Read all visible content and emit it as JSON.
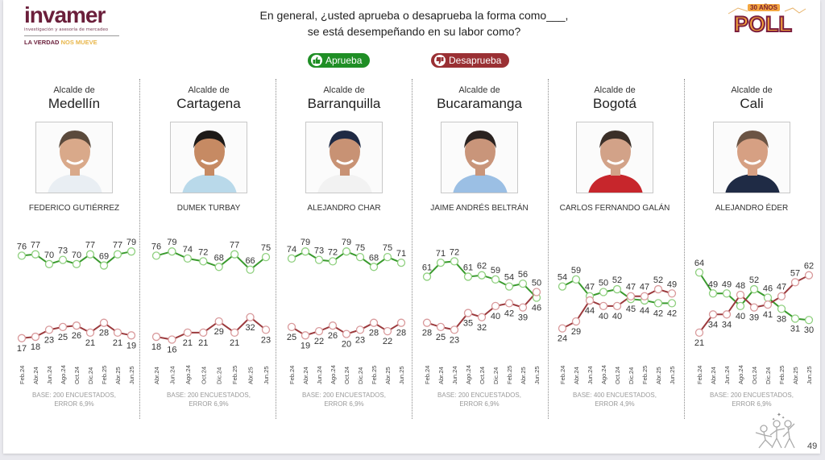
{
  "header": {
    "logo": {
      "name": "invamer",
      "subtitle": "investigación y asesoría de mercadeo",
      "tagline_a": "LA VERDAD",
      "tagline_b": "NOS MUEVE"
    },
    "question_line1": "En general, ¿usted aprueba o desaprueba la forma como___,",
    "question_line2": "se está desempeñando en su labor como?",
    "poll_badge": {
      "years": "30 AÑOS",
      "word": "POLL"
    }
  },
  "legend": {
    "approve": {
      "label": "Aprueba",
      "icon": "thumbs-up-icon",
      "color": "#1f8e25"
    },
    "disapprove": {
      "label": "Desaprueba",
      "icon": "thumbs-down-icon",
      "color": "#9a3034"
    }
  },
  "page_number": "49",
  "chart_data": [
    {
      "type": "line",
      "title_small": "Alcalde de",
      "title": "Medellín",
      "person": "FEDERICO GUTIÉRREZ",
      "x": [
        "Feb.24",
        "Abr.24",
        "Jun.24",
        "Ago.24",
        "Oct.24",
        "Dic.24",
        "Feb.25",
        "Abr.25",
        "Jun.25"
      ],
      "series": [
        {
          "name": "Aprueba",
          "color": "#3a9a2e",
          "values": [
            76,
            77,
            70,
            73,
            70,
            77,
            69,
            77,
            79
          ]
        },
        {
          "name": "Desaprueba",
          "color": "#9b3a3d",
          "values": [
            17,
            18,
            23,
            25,
            26,
            21,
            28,
            21,
            19
          ]
        }
      ],
      "base_line1": "BASE: 200 ENCUESTADOS,",
      "base_line2": "ERROR 6,9%",
      "ylim": [
        0,
        100
      ]
    },
    {
      "type": "line",
      "title_small": "Alcalde de",
      "title": "Cartagena",
      "person": "DUMEK TURBAY",
      "x": [
        "Abr.24",
        "Jun.24",
        "Ago.24",
        "Oct.24",
        "Dic.24",
        "Feb.25",
        "Abr.25",
        "Jun.25"
      ],
      "series": [
        {
          "name": "Aprueba",
          "color": "#3a9a2e",
          "values": [
            76,
            79,
            74,
            72,
            68,
            77,
            66,
            75
          ]
        },
        {
          "name": "Desaprueba",
          "color": "#9b3a3d",
          "values": [
            18,
            16,
            21,
            21,
            29,
            21,
            32,
            23
          ]
        }
      ],
      "base_line1": "BASE: 200 ENCUESTADOS,",
      "base_line2": "ERROR 6,9%",
      "ylim": [
        0,
        100
      ]
    },
    {
      "type": "line",
      "title_small": "Alcalde de",
      "title": "Barranquilla",
      "person": "ALEJANDRO CHAR",
      "x": [
        "Feb.24",
        "Abr.24",
        "Jun.24",
        "Ago.24",
        "Oct.24",
        "Dic.24",
        "Feb.25",
        "Abr.25",
        "Jun.25"
      ],
      "series": [
        {
          "name": "Aprueba",
          "color": "#3a9a2e",
          "values": [
            74,
            79,
            73,
            72,
            79,
            75,
            68,
            75,
            71
          ]
        },
        {
          "name": "Desaprueba",
          "color": "#9b3a3d",
          "values": [
            25,
            19,
            22,
            26,
            20,
            23,
            28,
            22,
            28
          ]
        }
      ],
      "base_line1": "BASE: 200 ENCUESTADOS,",
      "base_line2": "ERROR 6,9%",
      "ylim": [
        0,
        100
      ]
    },
    {
      "type": "line",
      "title_small": "Alcalde de",
      "title": "Bucaramanga",
      "person": "JAIME ANDRÉS BELTRÁN",
      "x": [
        "Feb.24",
        "Abr.24",
        "Jun.24",
        "Ago.24",
        "Oct.24",
        "Dic.24",
        "Feb.25",
        "Abr.25",
        "Jun.25"
      ],
      "series": [
        {
          "name": "Aprueba",
          "color": "#3a9a2e",
          "values": [
            61,
            71,
            72,
            61,
            62,
            59,
            54,
            56,
            46
          ]
        },
        {
          "name": "Desaprueba",
          "color": "#9b3a3d",
          "values": [
            28,
            25,
            23,
            35,
            32,
            40,
            42,
            39,
            50
          ]
        }
      ],
      "base_line1": "BASE: 200 ENCUESTADOS,",
      "base_line2": "ERROR 6,9%",
      "ylim": [
        0,
        100
      ]
    },
    {
      "type": "line",
      "title_small": "Alcalde de",
      "title": "Bogotá",
      "person": "CARLOS FERNANDO GALÁN",
      "x": [
        "Feb.24",
        "Abr.24",
        "Jun.24",
        "Ago.24",
        "Oct.24",
        "Dic.24",
        "Feb.25",
        "Abr.25",
        "Jun.25"
      ],
      "series": [
        {
          "name": "Aprueba",
          "color": "#3a9a2e",
          "values": [
            54,
            59,
            47,
            50,
            52,
            45,
            44,
            42,
            42
          ]
        },
        {
          "name": "Desaprueba",
          "color": "#9b3a3d",
          "values": [
            24,
            29,
            44,
            40,
            40,
            47,
            47,
            52,
            49
          ]
        }
      ],
      "base_line1": "BASE: 400 ENCUESTADOS,",
      "base_line2": "ERROR 4,9%",
      "ylim": [
        0,
        100
      ]
    },
    {
      "type": "line",
      "title_small": "Alcalde de",
      "title": "Cali",
      "person": "ALEJANDRO ÉDER",
      "x": [
        "Feb.24",
        "Abr.24",
        "Jun.24",
        "Ago.24",
        "Oct.24",
        "Dic.24",
        "Feb.25",
        "Abr.25",
        "Jun.25"
      ],
      "series": [
        {
          "name": "Aprueba",
          "color": "#3a9a2e",
          "values": [
            64,
            49,
            49,
            40,
            52,
            46,
            38,
            31,
            30
          ]
        },
        {
          "name": "Desaprueba",
          "color": "#9b3a3d",
          "values": [
            21,
            34,
            34,
            48,
            39,
            41,
            47,
            57,
            62
          ]
        }
      ],
      "base_line1": "BASE: 200 ENCUESTADOS,",
      "base_line2": "ERROR 6,9%",
      "ylim": [
        0,
        100
      ]
    }
  ]
}
